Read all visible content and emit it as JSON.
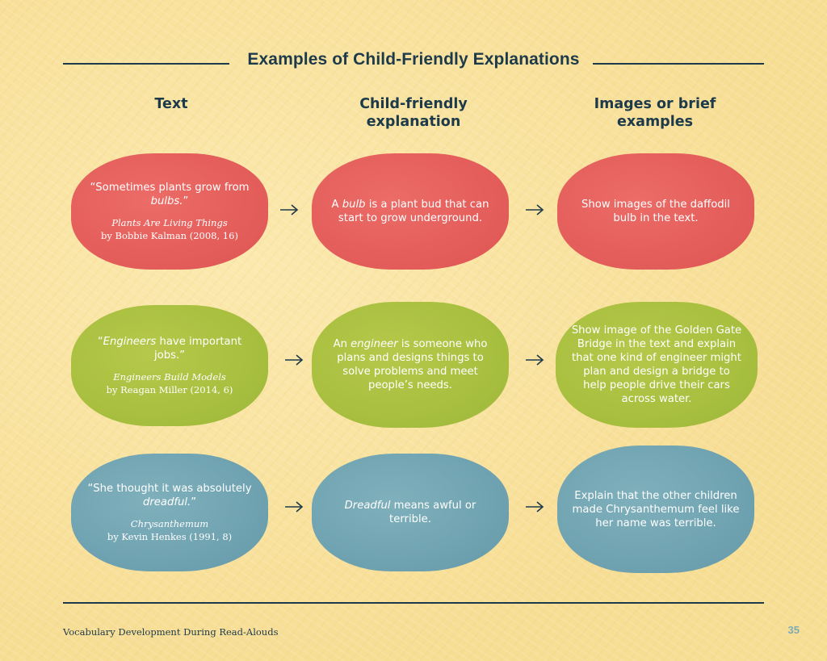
{
  "page": {
    "title": "Examples of Child-Friendly Explanations",
    "footer_text": "Vocabulary Development During Read-Alouds",
    "page_number": "35"
  },
  "columns": [
    {
      "label": "Text"
    },
    {
      "label": "Child-friendly explanation"
    },
    {
      "label": "Images or brief examples"
    }
  ],
  "rows": [
    {
      "color": "#e45e5b",
      "quote_pre": "“Sometimes plants grow from ",
      "quote_em": "bulbs.",
      "quote_post": "”",
      "book_title": "Plants Are Living Things",
      "book_author": "by Bobbie Kalman (2008, 16)",
      "expl_pre": "A ",
      "expl_em": "bulb",
      "expl_post": " is a plant bud that can start to grow underground.",
      "example": "Show images of the daffodil bulb in the text."
    },
    {
      "color": "#a8bf3f",
      "quote_pre": "“",
      "quote_em": "Engineers",
      "quote_post": " have important jobs.”",
      "book_title": "Engineers Build Models",
      "book_author": "by Reagan Miller (2014, 6)",
      "expl_pre": "An ",
      "expl_em": "engineer",
      "expl_post": " is someone who plans and designs things to solve problems and meet people’s needs.",
      "example": "Show image of the Golden Gate Bridge in the text and explain that one kind of engineer might plan and design a bridge to help people drive their cars across water."
    },
    {
      "color": "#70a3b1",
      "quote_pre": "“She thought it was absolutely ",
      "quote_em": "dreadful.",
      "quote_post": "”",
      "book_title": "Chrysanthemum",
      "book_author": "by Kevin Henkes (1991, 8)",
      "expl_pre": "",
      "expl_em": "Dreadful",
      "expl_post": " means awful or terrible.",
      "example": "Explain that the other children made Chrysanthemum feel like her name was terrible."
    }
  ],
  "icons": {
    "arrow": "right-arrow-icon"
  }
}
